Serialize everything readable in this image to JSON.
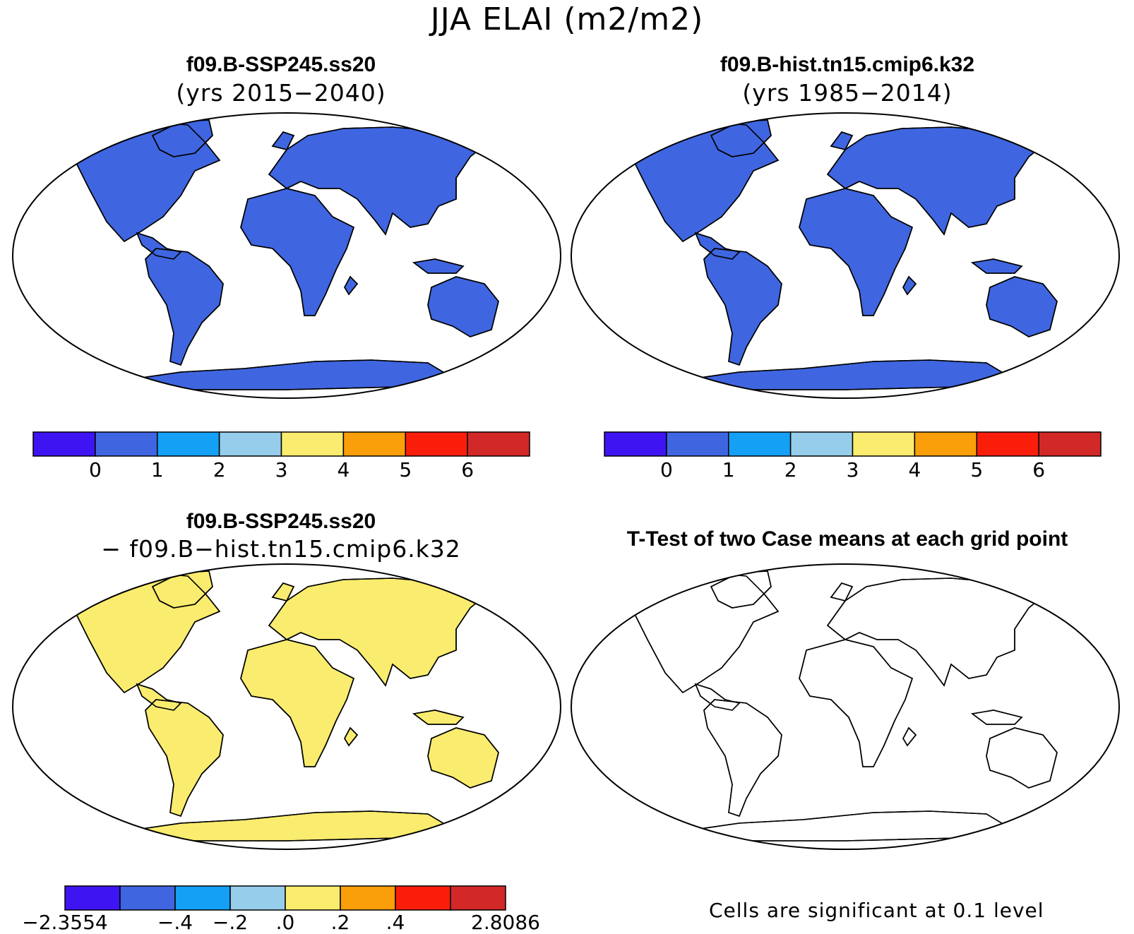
{
  "figure": {
    "title": "JJA ELAI (m2/m2)"
  },
  "panels": [
    {
      "id": "case1",
      "title": "f09.B-SSP245.ss20",
      "subtitle": "(yrs 2015−2040)",
      "type": "contour-map",
      "colorbar": {
        "colors": [
          "#3f14f2",
          "#3f66e0",
          "#14a0f5",
          "#96cdeb",
          "#faec6e",
          "#fa9e0a",
          "#fa1e0a",
          "#d22828"
        ],
        "labels": [
          "0",
          "1",
          "2",
          "3",
          "4",
          "5",
          "6"
        ]
      }
    },
    {
      "id": "case2",
      "title": "f09.B-hist.tn15.cmip6.k32",
      "subtitle": "(yrs 1985−2014)",
      "type": "contour-map",
      "colorbar": {
        "colors": [
          "#3f14f2",
          "#3f66e0",
          "#14a0f5",
          "#96cdeb",
          "#faec6e",
          "#fa9e0a",
          "#fa1e0a",
          "#d22828"
        ],
        "labels": [
          "0",
          "1",
          "2",
          "3",
          "4",
          "5",
          "6"
        ]
      }
    },
    {
      "id": "difference",
      "title": "f09.B-SSP245.ss20",
      "subtitle": "− f09.B−hist.tn15.cmip6.k32",
      "type": "contour-map",
      "colorbar": {
        "colors": [
          "#3f14f2",
          "#3f66e0",
          "#14a0f5",
          "#96cdeb",
          "#faec6e",
          "#fa9e0a",
          "#fa1e0a",
          "#d22828"
        ],
        "labels": [
          "−2.3554",
          "−.4",
          "−.2",
          ".0",
          ".2",
          ".4",
          "2.8086"
        ]
      }
    },
    {
      "id": "ttest",
      "title": "T-Test of two Case means at each grid point",
      "type": "significance-map",
      "significant_color": "#ff0000",
      "footnote": "Cells are significant at 0.1 level"
    }
  ]
}
